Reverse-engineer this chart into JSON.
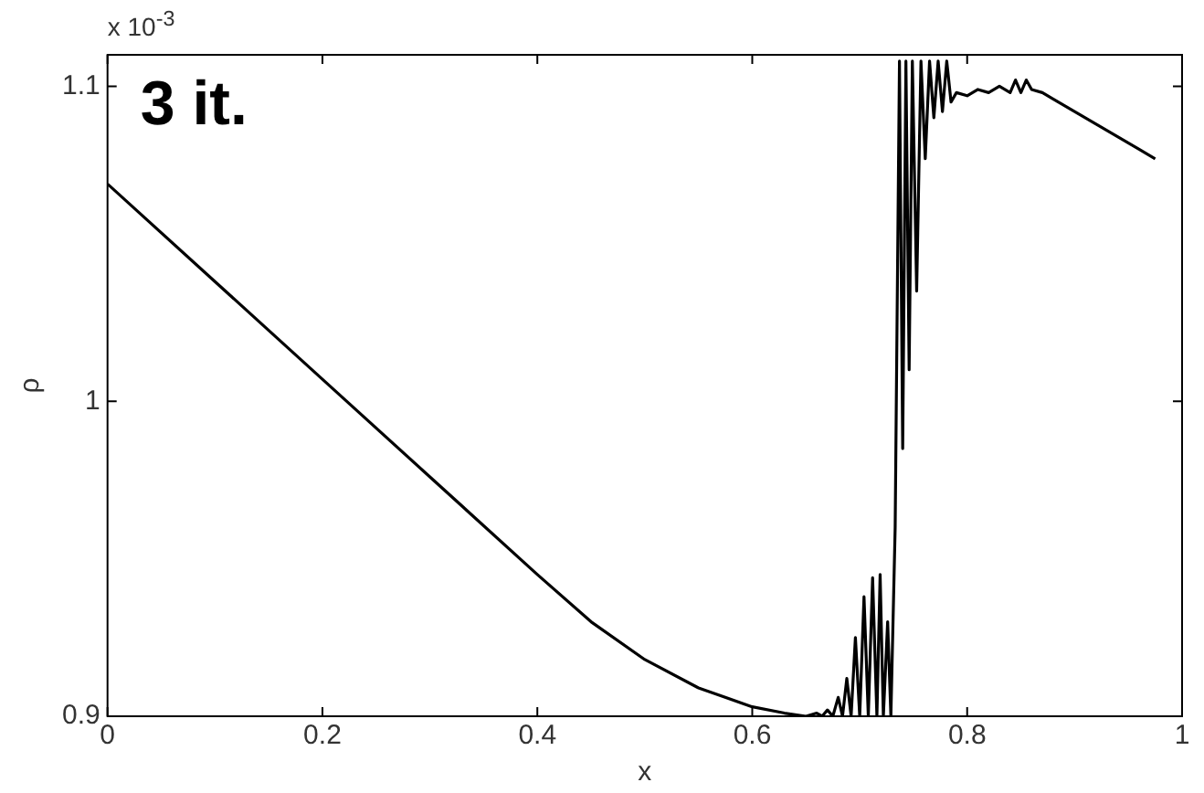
{
  "chart_data": {
    "type": "line",
    "xlabel": "x",
    "ylabel": "ρ",
    "color": "#000000",
    "annotations": [
      "3 it.",
      "x 10$^{-3}$"
    ],
    "x": [
      0,
      0.1,
      0.2,
      0.3,
      0.4,
      0.45,
      0.5,
      0.55,
      0.6,
      0.63,
      0.65,
      0.66,
      0.665,
      0.67,
      0.675,
      0.68,
      0.684,
      0.688,
      0.692,
      0.696,
      0.7,
      0.704,
      0.708,
      0.712,
      0.716,
      0.719,
      0.722,
      0.726,
      0.729,
      0.733,
      0.737,
      0.74,
      0.743,
      0.746,
      0.749,
      0.753,
      0.757,
      0.761,
      0.765,
      0.769,
      0.773,
      0.777,
      0.781,
      0.785,
      0.79,
      0.8,
      0.81,
      0.82,
      0.83,
      0.84,
      0.845,
      0.85,
      0.855,
      0.86,
      0.87,
      0.88,
      0.9,
      0.92,
      0.94,
      0.96,
      0.975
    ],
    "values": [
      1.069,
      1.038,
      1.007,
      0.976,
      0.945,
      0.93,
      0.918,
      0.909,
      0.903,
      0.901,
      0.9,
      0.901,
      0.9,
      0.902,
      0.9,
      0.906,
      0.9,
      0.912,
      0.9,
      0.925,
      0.9,
      0.938,
      0.9,
      0.944,
      0.9,
      0.945,
      0.9,
      0.93,
      0.9,
      0.96,
      1.108,
      0.985,
      1.108,
      1.01,
      1.108,
      1.035,
      1.108,
      1.077,
      1.108,
      1.09,
      1.108,
      1.092,
      1.108,
      1.095,
      1.098,
      1.097,
      1.099,
      1.098,
      1.1,
      1.098,
      1.102,
      1.098,
      1.102,
      1.099,
      1.098,
      1.096,
      1.092,
      1.088,
      1.084,
      1.08,
      1.077
    ],
    "xlim": [
      0,
      1
    ],
    "ylim": [
      0.9,
      1.11
    ],
    "xticks": [
      0,
      0.2,
      0.4,
      0.6,
      0.8,
      1
    ],
    "yticks": [
      0.9,
      1,
      1.1
    ],
    "grid": false,
    "legend": false,
    "marker": "none",
    "line_style": "solid"
  }
}
